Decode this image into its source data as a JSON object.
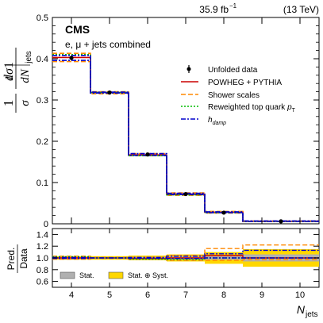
{
  "header": {
    "lumi_label": "35.9 fb",
    "lumi_exponent": "−1",
    "energy_label": "(13 TeV)",
    "experiment": "CMS",
    "channel": "e, μ + jets combined"
  },
  "legend": {
    "data_label": "Unfolded data",
    "powheg_label": "POWHEG + PYTHIA",
    "shower_label": "Shower scales",
    "reweighted_label": "Reweighted top quark",
    "reweighted_sub": "T",
    "hdamp_label": "h",
    "hdamp_sub": "damp",
    "stat_label": "Stat.",
    "statsyst_label": "Stat. ⊕ Syst."
  },
  "colors": {
    "powheg": "#cc0000",
    "shower": "#ff8800",
    "reweighted": "#00bb00",
    "hdamp": "#0000cc",
    "data": "#000000",
    "stat_band": "#b0b0b0",
    "statsyst_band": "#ffd700"
  },
  "chart_data": {
    "type": "step",
    "x_label_main": "N",
    "x_label_sub": "jets",
    "y_label": "1/σ dσ/dN_jets",
    "ratio_y_label": "Pred. / Data",
    "xlim": [
      3.5,
      10.5
    ],
    "ylim": [
      0,
      0.5
    ],
    "ratio_ylim": [
      0.5,
      1.5
    ],
    "x_ticks": [
      4,
      5,
      6,
      7,
      8,
      9,
      10
    ],
    "y_ticks": [
      0,
      0.1,
      0.2,
      0.3,
      0.4,
      0.5
    ],
    "ratio_y_ticks": [
      0.6,
      0.8,
      1.0,
      1.2,
      1.4
    ],
    "bin_edges": [
      3.5,
      4.5,
      5.5,
      6.5,
      7.5,
      8.5,
      10.5
    ],
    "data": {
      "name": "Unfolded data",
      "x": [
        4,
        5,
        6,
        7,
        8,
        9.5
      ],
      "y": [
        0.402,
        0.318,
        0.168,
        0.072,
        0.027,
        0.006
      ],
      "err": [
        0.006,
        0.003,
        0.004,
        0.003,
        0.002,
        0.001
      ]
    },
    "series": [
      {
        "name": "POWHEG + PYTHIA",
        "key": "powheg",
        "values": [
          0.403,
          0.318,
          0.167,
          0.072,
          0.028,
          0.006
        ]
      },
      {
        "name": "Shower scales up",
        "key": "shower",
        "values": [
          0.413,
          0.32,
          0.165,
          0.069,
          0.026,
          0.006
        ]
      },
      {
        "name": "Shower scales down",
        "key": "shower",
        "values": [
          0.393,
          0.315,
          0.17,
          0.075,
          0.03,
          0.007
        ]
      },
      {
        "name": "Reweighted top quark pT",
        "key": "reweighted",
        "values": [
          0.41,
          0.318,
          0.165,
          0.07,
          0.027,
          0.006
        ]
      },
      {
        "name": "hdamp up",
        "key": "hdamp",
        "values": [
          0.396,
          0.317,
          0.17,
          0.074,
          0.029,
          0.007
        ]
      },
      {
        "name": "hdamp down",
        "key": "hdamp",
        "values": [
          0.408,
          0.319,
          0.166,
          0.071,
          0.027,
          0.006
        ]
      }
    ],
    "ratio": {
      "stat": [
        0.01,
        0.01,
        0.015,
        0.02,
        0.03,
        0.06
      ],
      "statsyst": [
        0.03,
        0.03,
        0.04,
        0.06,
        0.1,
        0.15
      ],
      "series": [
        {
          "key": "powheg",
          "values": [
            1.0,
            1.0,
            0.99,
            1.0,
            1.04,
            1.0
          ]
        },
        {
          "key": "shower",
          "values": [
            1.03,
            1.01,
            0.98,
            0.96,
            0.96,
            0.97
          ]
        },
        {
          "key": "shower",
          "values": [
            0.98,
            0.99,
            1.01,
            1.04,
            1.16,
            1.22
          ]
        },
        {
          "key": "reweighted",
          "values": [
            1.02,
            1.0,
            0.98,
            0.97,
            1.0,
            1.0
          ]
        },
        {
          "key": "hdamp",
          "values": [
            0.99,
            1.0,
            1.01,
            1.03,
            1.07,
            1.13
          ]
        },
        {
          "key": "hdamp",
          "values": [
            1.01,
            1.0,
            0.99,
            0.99,
            1.0,
            1.0
          ]
        }
      ]
    }
  }
}
